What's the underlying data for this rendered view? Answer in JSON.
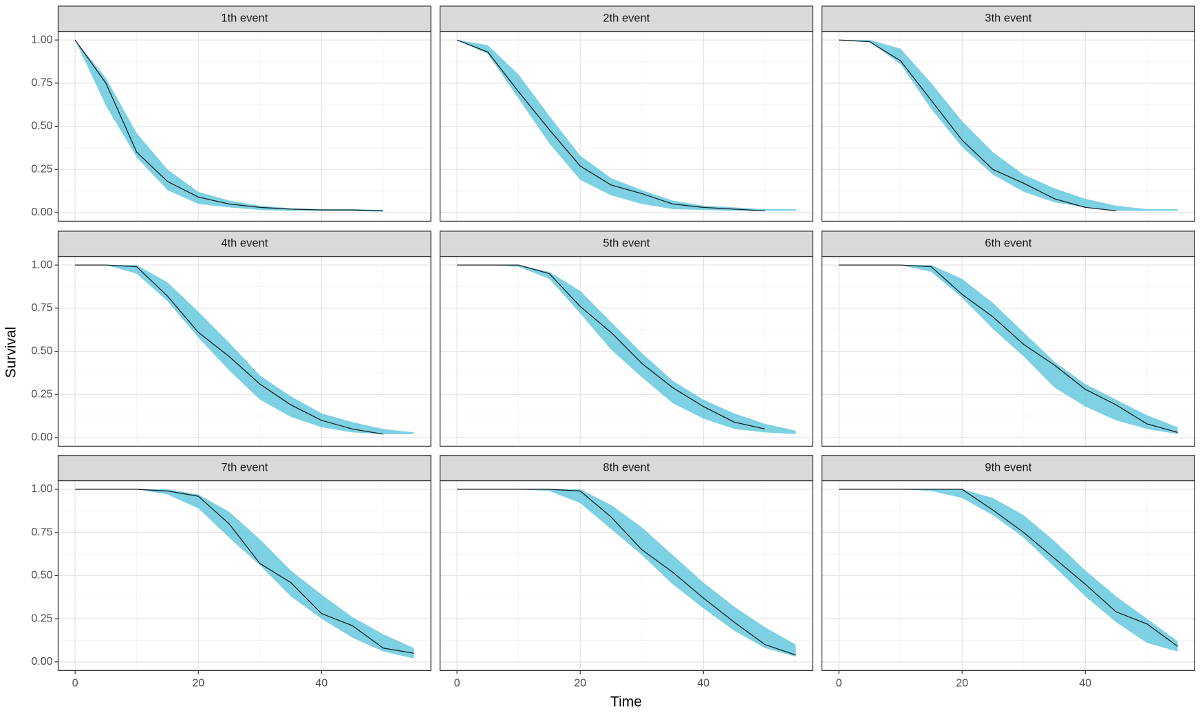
{
  "x_label": "Time",
  "y_label": "Survival",
  "chart_data": [
    {
      "type": "line",
      "title": "1th event",
      "x": [
        0,
        5,
        10,
        15,
        20,
        25,
        30,
        35,
        40,
        45,
        50,
        55
      ],
      "values": [
        1,
        0.75,
        0.35,
        0.18,
        0.09,
        0.05,
        0.03,
        0.02,
        0.015,
        0.015,
        0.01,
        null
      ],
      "lower": [
        1,
        0.62,
        0.32,
        0.13,
        0.05,
        0.03,
        0.015,
        0.01,
        0.01,
        0.01,
        0.005,
        null
      ],
      "upper": [
        1,
        0.78,
        0.46,
        0.25,
        0.12,
        0.07,
        0.04,
        0.025,
        0.02,
        0.02,
        0.015,
        null
      ],
      "color": "#000000",
      "band_color": "#5ec6dc",
      "xlim": [
        -2.75,
        57.75
      ],
      "ylim": [
        -0.05,
        1.05
      ],
      "xticks": [
        0,
        20,
        40
      ],
      "yticks": [
        {
          "value": 0,
          "label": "0.00"
        },
        {
          "value": 0.25,
          "label": "0.25"
        },
        {
          "value": 0.5,
          "label": "0.50"
        },
        {
          "value": 0.75,
          "label": "0.75"
        },
        {
          "value": 1,
          "label": "1.00"
        }
      ],
      "minor_xticks": [
        10,
        30,
        50
      ],
      "minor_yticks": [
        0.125,
        0.375,
        0.625,
        0.875
      ],
      "grid": true
    },
    {
      "type": "line",
      "title": "2th event",
      "x": [
        0,
        5,
        10,
        15,
        20,
        25,
        30,
        35,
        40,
        45,
        50,
        55
      ],
      "values": [
        1,
        0.93,
        0.7,
        0.48,
        0.27,
        0.16,
        0.11,
        0.05,
        0.03,
        0.02,
        0.01,
        null
      ],
      "lower": [
        1,
        0.92,
        0.66,
        0.4,
        0.19,
        0.1,
        0.05,
        0.02,
        0.015,
        0.01,
        0.01,
        0.01
      ],
      "upper": [
        1,
        0.97,
        0.8,
        0.56,
        0.33,
        0.2,
        0.13,
        0.07,
        0.04,
        0.03,
        0.02,
        0.02
      ],
      "color": "#000000",
      "band_color": "#5ec6dc",
      "xlim": [
        -2.75,
        57.75
      ],
      "ylim": [
        -0.05,
        1.05
      ],
      "xticks": [
        0,
        20,
        40
      ],
      "yticks": [
        {
          "value": 0,
          "label": "0.00"
        },
        {
          "value": 0.25,
          "label": "0.25"
        },
        {
          "value": 0.5,
          "label": "0.50"
        },
        {
          "value": 0.75,
          "label": "0.75"
        },
        {
          "value": 1,
          "label": "1.00"
        }
      ],
      "minor_xticks": [
        10,
        30,
        50
      ],
      "minor_yticks": [
        0.125,
        0.375,
        0.625,
        0.875
      ],
      "grid": true
    },
    {
      "type": "line",
      "title": "3th event",
      "x": [
        0,
        5,
        10,
        15,
        20,
        25,
        30,
        35,
        40,
        45,
        50,
        55
      ],
      "values": [
        1,
        0.99,
        0.88,
        0.65,
        0.42,
        0.25,
        0.17,
        0.08,
        0.03,
        0.01,
        null,
        null
      ],
      "lower": [
        1,
        0.99,
        0.86,
        0.6,
        0.38,
        0.22,
        0.12,
        0.06,
        0.03,
        0.01,
        0.01,
        0.01
      ],
      "upper": [
        1,
        1,
        0.95,
        0.75,
        0.53,
        0.35,
        0.22,
        0.14,
        0.08,
        0.04,
        0.02,
        0.02
      ],
      "color": "#000000",
      "band_color": "#5ec6dc",
      "xlim": [
        -2.75,
        57.75
      ],
      "ylim": [
        -0.05,
        1.05
      ],
      "xticks": [
        0,
        20,
        40
      ],
      "yticks": [
        {
          "value": 0,
          "label": "0.00"
        },
        {
          "value": 0.25,
          "label": "0.25"
        },
        {
          "value": 0.5,
          "label": "0.50"
        },
        {
          "value": 0.75,
          "label": "0.75"
        },
        {
          "value": 1,
          "label": "1.00"
        }
      ],
      "minor_xticks": [
        10,
        30,
        50
      ],
      "minor_yticks": [
        0.125,
        0.375,
        0.625,
        0.875
      ],
      "grid": true
    },
    {
      "type": "line",
      "title": "4th event",
      "x": [
        0,
        5,
        10,
        15,
        20,
        25,
        30,
        35,
        40,
        45,
        50,
        55
      ],
      "values": [
        1,
        1,
        0.99,
        0.82,
        0.61,
        0.47,
        0.31,
        0.19,
        0.1,
        0.05,
        0.02,
        null
      ],
      "lower": [
        1,
        1,
        0.95,
        0.79,
        0.58,
        0.39,
        0.22,
        0.12,
        0.06,
        0.03,
        0.02,
        0.02
      ],
      "upper": [
        1,
        1,
        1,
        0.9,
        0.73,
        0.55,
        0.36,
        0.24,
        0.14,
        0.09,
        0.05,
        0.03
      ],
      "color": "#000000",
      "band_color": "#5ec6dc",
      "xlim": [
        -2.75,
        57.75
      ],
      "ylim": [
        -0.05,
        1.05
      ],
      "xticks": [
        0,
        20,
        40
      ],
      "yticks": [
        {
          "value": 0,
          "label": "0.00"
        },
        {
          "value": 0.25,
          "label": "0.25"
        },
        {
          "value": 0.5,
          "label": "0.50"
        },
        {
          "value": 0.75,
          "label": "0.75"
        },
        {
          "value": 1,
          "label": "1.00"
        }
      ],
      "minor_xticks": [
        10,
        30,
        50
      ],
      "minor_yticks": [
        0.125,
        0.375,
        0.625,
        0.875
      ],
      "grid": true
    },
    {
      "type": "line",
      "title": "5th event",
      "x": [
        0,
        5,
        10,
        15,
        20,
        25,
        30,
        35,
        40,
        45,
        50,
        55
      ],
      "values": [
        1,
        1,
        1,
        0.95,
        0.76,
        0.61,
        0.43,
        0.29,
        0.18,
        0.09,
        0.05,
        null
      ],
      "lower": [
        1,
        1,
        0.99,
        0.92,
        0.72,
        0.51,
        0.35,
        0.2,
        0.11,
        0.05,
        0.03,
        0.02
      ],
      "upper": [
        1,
        1,
        1,
        0.96,
        0.85,
        0.67,
        0.49,
        0.33,
        0.22,
        0.14,
        0.08,
        0.04
      ],
      "color": "#000000",
      "band_color": "#5ec6dc",
      "xlim": [
        -2.75,
        57.75
      ],
      "ylim": [
        -0.05,
        1.05
      ],
      "xticks": [
        0,
        20,
        40
      ],
      "yticks": [
        {
          "value": 0,
          "label": "0.00"
        },
        {
          "value": 0.25,
          "label": "0.25"
        },
        {
          "value": 0.5,
          "label": "0.50"
        },
        {
          "value": 0.75,
          "label": "0.75"
        },
        {
          "value": 1,
          "label": "1.00"
        }
      ],
      "minor_xticks": [
        10,
        30,
        50
      ],
      "minor_yticks": [
        0.125,
        0.375,
        0.625,
        0.875
      ],
      "grid": true
    },
    {
      "type": "line",
      "title": "6th event",
      "x": [
        0,
        5,
        10,
        15,
        20,
        25,
        30,
        35,
        40,
        45,
        50,
        55
      ],
      "values": [
        1,
        1,
        1,
        0.99,
        0.83,
        0.7,
        0.54,
        0.42,
        0.28,
        0.19,
        0.08,
        0.03
      ],
      "lower": [
        1,
        1,
        1,
        0.96,
        0.81,
        0.63,
        0.47,
        0.29,
        0.18,
        0.1,
        0.05,
        0.02
      ],
      "upper": [
        1,
        1,
        1,
        1,
        0.92,
        0.78,
        0.61,
        0.44,
        0.31,
        0.22,
        0.13,
        0.06
      ],
      "color": "#000000",
      "band_color": "#5ec6dc",
      "xlim": [
        -2.75,
        57.75
      ],
      "ylim": [
        -0.05,
        1.05
      ],
      "xticks": [
        0,
        20,
        40
      ],
      "yticks": [
        {
          "value": 0,
          "label": "0.00"
        },
        {
          "value": 0.25,
          "label": "0.25"
        },
        {
          "value": 0.5,
          "label": "0.50"
        },
        {
          "value": 0.75,
          "label": "0.75"
        },
        {
          "value": 1,
          "label": "1.00"
        }
      ],
      "minor_xticks": [
        10,
        30,
        50
      ],
      "minor_yticks": [
        0.125,
        0.375,
        0.625,
        0.875
      ],
      "grid": true
    },
    {
      "type": "line",
      "title": "7th event",
      "x": [
        0,
        5,
        10,
        15,
        20,
        25,
        30,
        35,
        40,
        45,
        50,
        55
      ],
      "values": [
        1,
        1,
        1,
        0.99,
        0.96,
        0.8,
        0.57,
        0.46,
        0.28,
        0.21,
        0.08,
        0.05
      ],
      "lower": [
        1,
        1,
        1,
        0.97,
        0.89,
        0.72,
        0.56,
        0.38,
        0.25,
        0.14,
        0.06,
        0.02
      ],
      "upper": [
        1,
        1,
        1,
        1,
        0.97,
        0.87,
        0.71,
        0.53,
        0.39,
        0.26,
        0.16,
        0.08
      ],
      "color": "#000000",
      "band_color": "#5ec6dc",
      "xlim": [
        -2.75,
        57.75
      ],
      "ylim": [
        -0.05,
        1.05
      ],
      "xticks": [
        0,
        20,
        40
      ],
      "yticks": [
        {
          "value": 0,
          "label": "0.00"
        },
        {
          "value": 0.25,
          "label": "0.25"
        },
        {
          "value": 0.5,
          "label": "0.50"
        },
        {
          "value": 0.75,
          "label": "0.75"
        },
        {
          "value": 1,
          "label": "1.00"
        }
      ],
      "minor_xticks": [
        10,
        30,
        50
      ],
      "minor_yticks": [
        0.125,
        0.375,
        0.625,
        0.875
      ],
      "grid": true
    },
    {
      "type": "line",
      "title": "8th event",
      "x": [
        0,
        5,
        10,
        15,
        20,
        25,
        30,
        35,
        40,
        45,
        50,
        55
      ],
      "values": [
        1,
        1,
        1,
        1,
        0.99,
        0.84,
        0.65,
        0.52,
        0.37,
        0.23,
        0.1,
        0.04
      ],
      "lower": [
        1,
        1,
        1,
        0.99,
        0.92,
        0.77,
        0.62,
        0.45,
        0.31,
        0.18,
        0.08,
        0.03
      ],
      "upper": [
        1,
        1,
        1,
        1,
        1,
        0.91,
        0.78,
        0.62,
        0.46,
        0.32,
        0.2,
        0.1
      ],
      "color": "#000000",
      "band_color": "#5ec6dc",
      "xlim": [
        -2.75,
        57.75
      ],
      "ylim": [
        -0.05,
        1.05
      ],
      "xticks": [
        0,
        20,
        40
      ],
      "yticks": [
        {
          "value": 0,
          "label": "0.00"
        },
        {
          "value": 0.25,
          "label": "0.25"
        },
        {
          "value": 0.5,
          "label": "0.50"
        },
        {
          "value": 0.75,
          "label": "0.75"
        },
        {
          "value": 1,
          "label": "1.00"
        }
      ],
      "minor_xticks": [
        10,
        30,
        50
      ],
      "minor_yticks": [
        0.125,
        0.375,
        0.625,
        0.875
      ],
      "grid": true
    },
    {
      "type": "line",
      "title": "9th event",
      "x": [
        0,
        5,
        10,
        15,
        20,
        25,
        30,
        35,
        40,
        45,
        50,
        55
      ],
      "values": [
        1,
        1,
        1,
        1,
        1,
        0.88,
        0.75,
        0.6,
        0.45,
        0.29,
        0.22,
        0.09
      ],
      "lower": [
        1,
        1,
        1,
        0.99,
        0.95,
        0.85,
        0.72,
        0.55,
        0.38,
        0.23,
        0.11,
        0.06
      ],
      "upper": [
        1,
        1,
        1,
        1,
        1,
        0.95,
        0.85,
        0.7,
        0.53,
        0.38,
        0.25,
        0.12
      ],
      "color": "#000000",
      "band_color": "#5ec6dc",
      "xlim": [
        -2.75,
        57.75
      ],
      "ylim": [
        -0.05,
        1.05
      ],
      "xticks": [
        0,
        20,
        40
      ],
      "yticks": [
        {
          "value": 0,
          "label": "0.00"
        },
        {
          "value": 0.25,
          "label": "0.25"
        },
        {
          "value": 0.5,
          "label": "0.50"
        },
        {
          "value": 0.75,
          "label": "0.75"
        },
        {
          "value": 1,
          "label": "1.00"
        }
      ],
      "minor_xticks": [
        10,
        30,
        50
      ],
      "minor_yticks": [
        0.125,
        0.375,
        0.625,
        0.875
      ],
      "grid": true
    }
  ]
}
